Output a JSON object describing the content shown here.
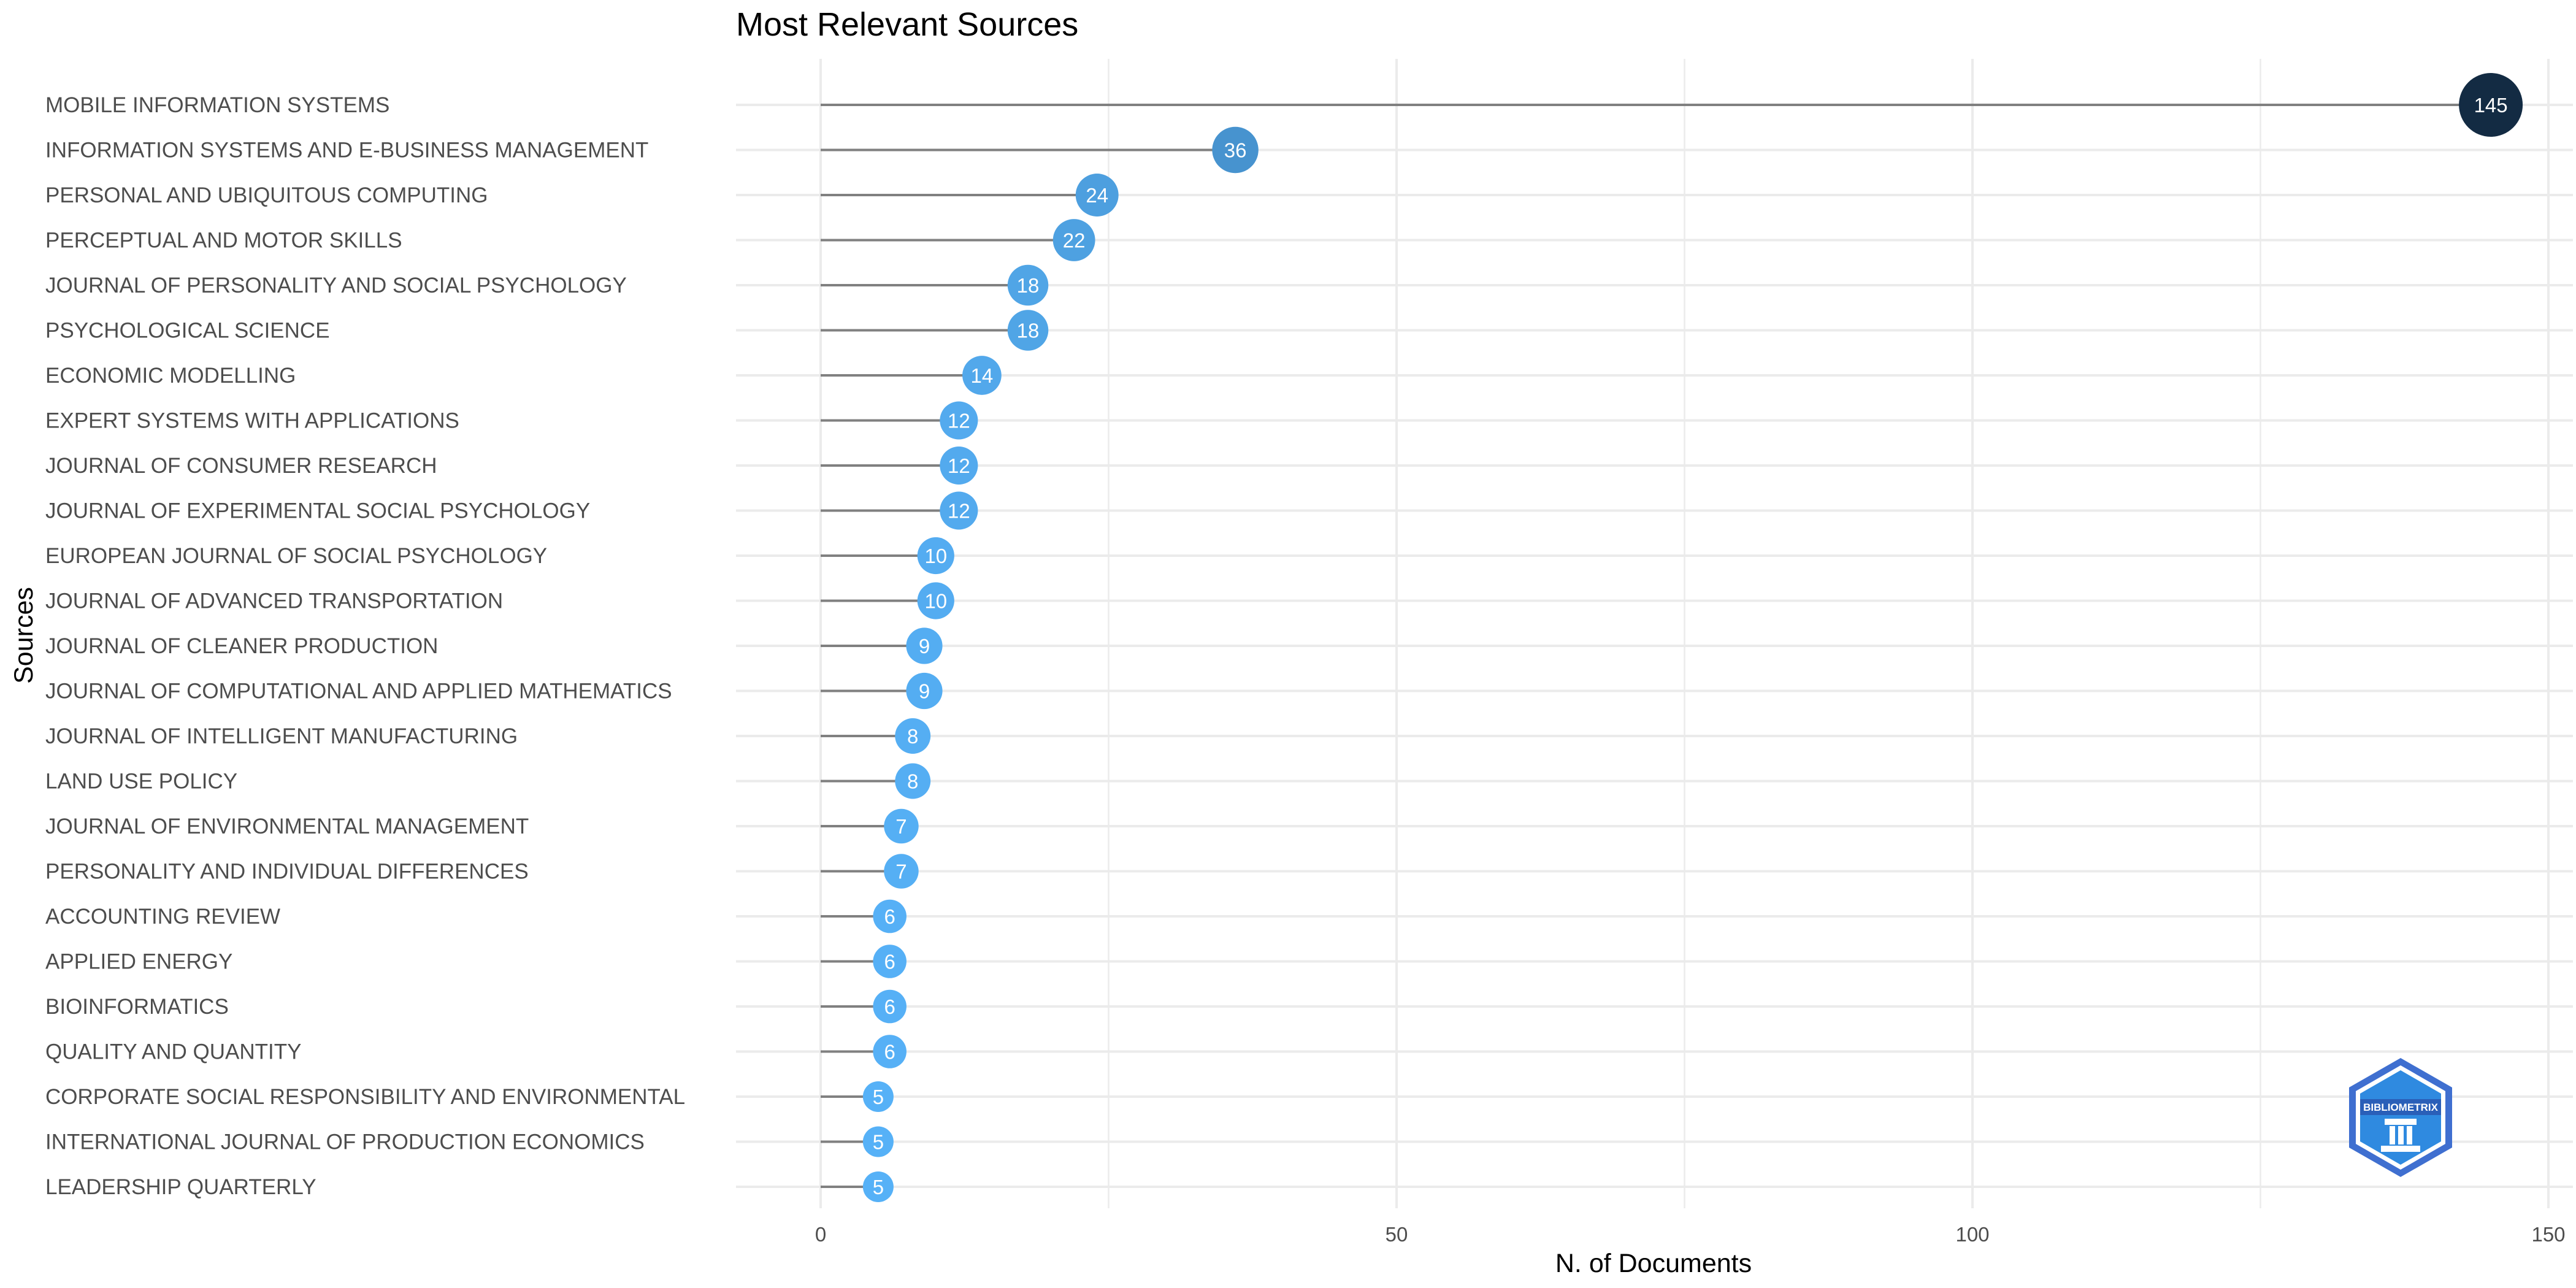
{
  "chart_data": {
    "type": "lollipop",
    "title": "Most Relevant Sources",
    "xlabel": "N. of Documents",
    "ylabel": "Sources",
    "xlim": [
      0,
      150
    ],
    "xticks": [
      0,
      50,
      100,
      150
    ],
    "grid": true,
    "legend": "none",
    "categories": [
      "MOBILE INFORMATION SYSTEMS",
      "INFORMATION SYSTEMS AND E-BUSINESS MANAGEMENT",
      "PERSONAL AND UBIQUITOUS COMPUTING",
      "PERCEPTUAL AND MOTOR SKILLS",
      "JOURNAL OF PERSONALITY AND SOCIAL PSYCHOLOGY",
      "PSYCHOLOGICAL SCIENCE",
      "ECONOMIC MODELLING",
      "EXPERT SYSTEMS WITH APPLICATIONS",
      "JOURNAL OF CONSUMER RESEARCH",
      "JOURNAL OF EXPERIMENTAL SOCIAL PSYCHOLOGY",
      "EUROPEAN JOURNAL OF SOCIAL PSYCHOLOGY",
      "JOURNAL OF ADVANCED TRANSPORTATION",
      "JOURNAL OF CLEANER PRODUCTION",
      "JOURNAL OF COMPUTATIONAL AND APPLIED MATHEMATICS",
      "JOURNAL OF INTELLIGENT MANUFACTURING",
      "LAND USE POLICY",
      "JOURNAL OF ENVIRONMENTAL MANAGEMENT",
      "PERSONALITY AND INDIVIDUAL DIFFERENCES",
      "ACCOUNTING REVIEW",
      "APPLIED ENERGY",
      "BIOINFORMATICS",
      "QUALITY AND QUANTITY",
      "CORPORATE SOCIAL RESPONSIBILITY AND ENVIRONMENTAL",
      "INTERNATIONAL JOURNAL OF PRODUCTION ECONOMICS",
      "LEADERSHIP QUARTERLY"
    ],
    "values": [
      145,
      36,
      24,
      22,
      18,
      18,
      14,
      12,
      12,
      12,
      10,
      10,
      9,
      9,
      8,
      8,
      7,
      7,
      6,
      6,
      6,
      6,
      5,
      5,
      5
    ],
    "colors": {
      "low": "#56B1F7",
      "high": "#132B43",
      "stem": "#808080",
      "grid": "#ebebeb"
    }
  },
  "logo": {
    "text": "BIBLIOMETRIX"
  }
}
